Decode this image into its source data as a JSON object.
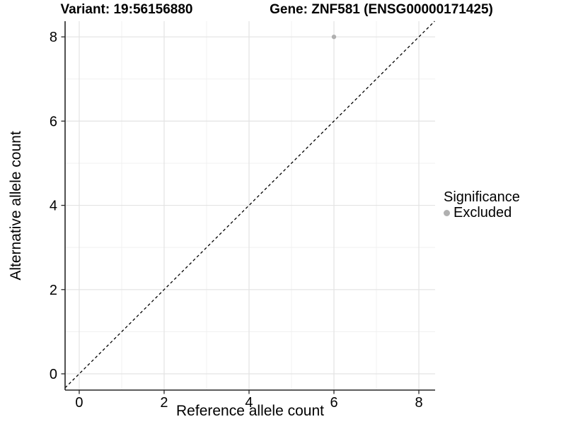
{
  "titles": {
    "variant": "Variant: 19:56156880",
    "gene": "Gene: ZNF581 (ENSG00000171425)"
  },
  "chart_data": {
    "type": "scatter",
    "xlabel": "Reference allele count",
    "ylabel": "Alternative allele count",
    "xlim": [
      -0.333,
      8.383
    ],
    "ylim": [
      -0.386,
      8.372
    ],
    "xticks": [
      0,
      2,
      4,
      6,
      8
    ],
    "yticks": [
      0,
      2,
      4,
      6,
      8
    ],
    "minor_xticks": [
      1,
      3,
      5,
      7
    ],
    "minor_yticks": [
      1,
      3,
      5,
      7
    ],
    "grid": true,
    "identity_line": {
      "equation": "y = x",
      "style": "dashed",
      "color": "#000000"
    },
    "series": [
      {
        "name": "Excluded",
        "color": "#b0b0b0",
        "points": [
          [
            6,
            8
          ]
        ]
      }
    ],
    "legend": {
      "title": "Significance",
      "position": "right",
      "items": [
        {
          "label": "Excluded",
          "color": "#b0b0b0",
          "marker": "circle"
        }
      ]
    }
  },
  "colors": {
    "background": "#ffffff",
    "axis_line": "#262626",
    "grid_major": "#e3e3e3",
    "grid_minor": "#f0f0f0",
    "tick_mark": "#262626",
    "text": "#000000"
  }
}
